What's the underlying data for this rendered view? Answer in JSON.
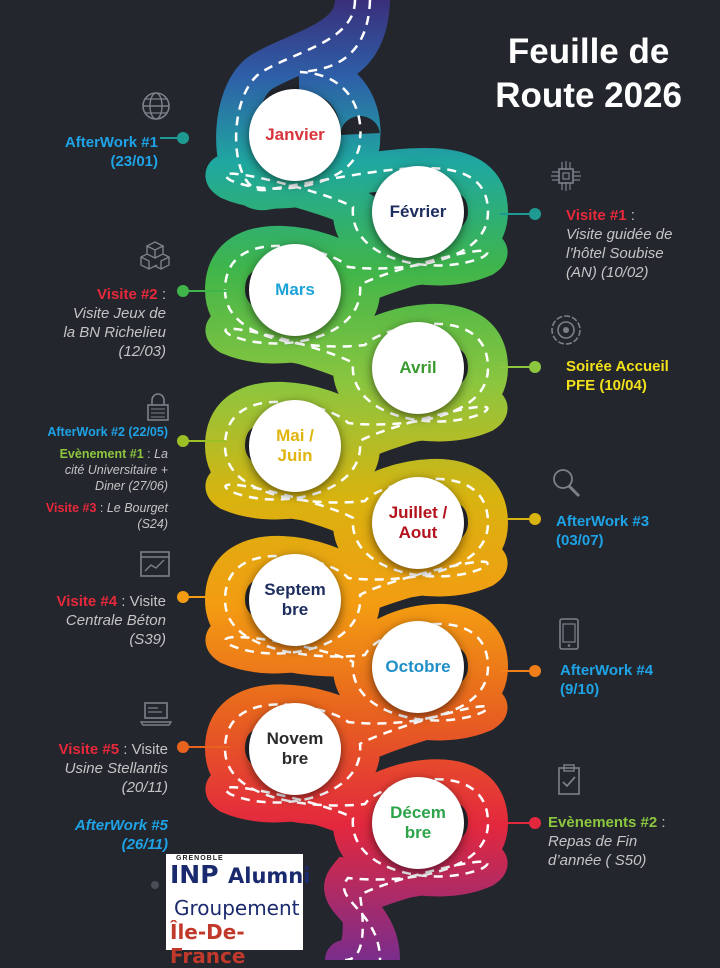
{
  "title": {
    "line1": "Feuille de",
    "line2": "Route 2026"
  },
  "colors": {
    "background": "#23262d",
    "road_gradient": [
      "#3a2f7a",
      "#2e5fa8",
      "#1fa8a0",
      "#3fb54a",
      "#8cc63f",
      "#d9b30f",
      "#f39c12",
      "#e8641e",
      "#e3283e",
      "#7a2d8c"
    ]
  },
  "months": [
    {
      "label": "Janvier",
      "color": "#d9343b"
    },
    {
      "label": "Février",
      "color": "#1d2d5e"
    },
    {
      "label": "Mars",
      "color": "#1ea3d8"
    },
    {
      "label": "Avril",
      "color": "#3a9a2f"
    },
    {
      "label": "Mai /\nJuin",
      "color": "#e0b50f"
    },
    {
      "label": "Juillet /\nAout",
      "color": "#b3121d"
    },
    {
      "label": "Septem\nbre",
      "color": "#1d2d5e"
    },
    {
      "label": "Octobre",
      "color": "#1f8fc8"
    },
    {
      "label": "Novem\nbre",
      "color": "#2b2b2b"
    },
    {
      "label": "Décem\nbre",
      "color": "#2da34a"
    }
  ],
  "events": [
    {
      "side": "left",
      "icon": "globe-icon",
      "dot_color": "#1f9a93",
      "lines": [
        [
          {
            "t": "AfterWork #1",
            "c": "#1ea3e6",
            "b": true
          }
        ],
        [
          {
            "t": "(23/01)",
            "c": "#1ea3e6",
            "b": true
          }
        ]
      ]
    },
    {
      "side": "right",
      "icon": "circuit-chip-icon",
      "dot_color": "#1f9a93",
      "lines": [
        [
          {
            "t": "Visite #1",
            "c": "#e8283b",
            "b": true
          },
          {
            "t": " :",
            "c": "#c4c4c4"
          }
        ],
        [
          {
            "t": "Visite guidée de",
            "c": "#c4c4c4",
            "i": true
          }
        ],
        [
          {
            "t": "l’hôtel Soubise",
            "c": "#c4c4c4",
            "i": true
          }
        ],
        [
          {
            "t": "(AN) (10/02)",
            "c": "#c4c4c4",
            "i": true
          }
        ]
      ]
    },
    {
      "side": "left",
      "icon": "cubes-icon",
      "dot_color": "#3fb54a",
      "lines": [
        [
          {
            "t": "Visite #2",
            "c": "#e8283b",
            "b": true
          },
          {
            "t": " :",
            "c": "#c4c4c4"
          }
        ],
        [
          {
            "t": "Visite Jeux de",
            "c": "#c4c4c4",
            "i": true
          }
        ],
        [
          {
            "t": "la BN Richelieu",
            "c": "#c4c4c4",
            "i": true
          }
        ],
        [
          {
            "t": "(12/03)",
            "c": "#c4c4c4",
            "i": true
          }
        ]
      ]
    },
    {
      "side": "right",
      "icon": "target-gear-icon",
      "dot_color": "#8cc63f",
      "lines": [
        [
          {
            "t": "Soirée Accueil",
            "c": "#f2e01a",
            "b": true
          }
        ],
        [
          {
            "t": "PFE (10/04)",
            "c": "#f2e01a",
            "b": true
          }
        ]
      ]
    },
    {
      "side": "left",
      "small": true,
      "icon": "lock-icon",
      "dot_color": "#9cbf25",
      "lines": [
        [
          {
            "t": "AfterWork #2 (22/05)",
            "c": "#1ea3e6",
            "b": true
          }
        ],
        [
          {
            "t": " ",
            "c": "#c4c4c4"
          }
        ],
        [
          {
            "t": "Evènement #1",
            "c": "#8cc63f",
            "b": true
          },
          {
            "t": " : ",
            "c": "#c4c4c4"
          },
          {
            "t": "La",
            "c": "#c4c4c4",
            "i": true
          }
        ],
        [
          {
            "t": "cité Universitaire +",
            "c": "#c4c4c4",
            "i": true
          }
        ],
        [
          {
            "t": "Diner (27/06)",
            "c": "#c4c4c4",
            "i": true
          }
        ],
        [
          {
            "t": " ",
            "c": "#c4c4c4"
          }
        ],
        [
          {
            "t": "Visite #3",
            "c": "#e8283b",
            "b": true
          },
          {
            "t": " : ",
            "c": "#c4c4c4"
          },
          {
            "t": "Le Bourget",
            "c": "#c4c4c4",
            "i": true
          }
        ],
        [
          {
            "t": "(S24)",
            "c": "#c4c4c4",
            "i": true
          }
        ]
      ]
    },
    {
      "side": "right",
      "icon": "magnifier-icon",
      "dot_color": "#d9b30f",
      "lines": [
        [
          {
            "t": "AfterWork #3",
            "c": "#1ea3e6",
            "b": true
          }
        ],
        [
          {
            "t": "(03/07)",
            "c": "#1ea3e6",
            "b": true
          }
        ]
      ]
    },
    {
      "side": "left",
      "icon": "chart-window-icon",
      "dot_color": "#f39c12",
      "lines": [
        [
          {
            "t": "Visite #4",
            "c": "#e8283b",
            "b": true
          },
          {
            "t": " : Visite",
            "c": "#c4c4c4"
          }
        ],
        [
          {
            "t": "Centrale Béton",
            "c": "#c4c4c4",
            "i": true
          }
        ],
        [
          {
            "t": "(S39)",
            "c": "#c4c4c4",
            "i": true
          }
        ]
      ]
    },
    {
      "side": "right",
      "icon": "tablet-icon",
      "dot_color": "#f07f1a",
      "lines": [
        [
          {
            "t": "AfterWork #4",
            "c": "#1ea3e6",
            "b": true
          }
        ],
        [
          {
            "t": "(9/10)",
            "c": "#1ea3e6",
            "b": true
          }
        ]
      ]
    },
    {
      "side": "left",
      "icon": "laptop-icon",
      "dot_color": "#e8641e",
      "lines": [
        [
          {
            "t": "Visite #5",
            "c": "#e8283b",
            "b": true
          },
          {
            "t": " : Visite",
            "c": "#c4c4c4"
          }
        ],
        [
          {
            "t": "Usine Stellantis",
            "c": "#c4c4c4",
            "i": true
          }
        ],
        [
          {
            "t": "(20/11)",
            "c": "#c4c4c4",
            "i": true
          }
        ],
        [
          {
            "t": " ",
            "c": "#c4c4c4"
          }
        ],
        [
          {
            "t": "AfterWork #5",
            "c": "#1ea3e6",
            "b": true,
            "i": true
          }
        ],
        [
          {
            "t": "(26/11)",
            "c": "#1ea3e6",
            "b": true,
            "i": true
          }
        ]
      ]
    },
    {
      "side": "right",
      "icon": "clipboard-check-icon",
      "dot_color": "#e3283e",
      "lines": [
        [
          {
            "t": "Evènements #2",
            "c": "#8cc63f",
            "b": true
          },
          {
            "t": " :",
            "c": "#c4c4c4"
          }
        ],
        [
          {
            "t": "Repas de Fin",
            "c": "#c4c4c4",
            "i": true
          }
        ],
        [
          {
            "t": "d’année ( S50)",
            "c": "#c4c4c4",
            "i": true
          }
        ]
      ]
    }
  ],
  "logo": {
    "top": "GRENOBLE",
    "brand": "INP",
    "brand2": "Alumni",
    "line2": "Groupement",
    "line3": "Île-De-France"
  }
}
